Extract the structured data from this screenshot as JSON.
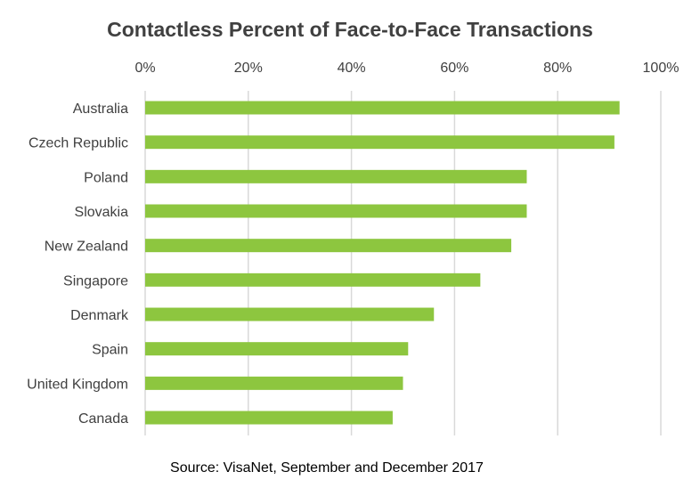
{
  "chart_data": {
    "type": "bar",
    "orientation": "horizontal",
    "title": "Contactless Percent of Face-to-Face Transactions",
    "source": "Source: VisaNet, September and December 2017",
    "categories": [
      "Australia",
      "Czech Republic",
      "Poland",
      "Slovakia",
      "New Zealand",
      "Singapore",
      "Denmark",
      "Spain",
      "United Kingdom",
      "Canada"
    ],
    "values": [
      92,
      91,
      74,
      74,
      71,
      65,
      56,
      51,
      50,
      48
    ],
    "xlim": [
      0,
      100
    ],
    "xticks": [
      0,
      20,
      40,
      60,
      80,
      100
    ],
    "xtick_labels": [
      "0%",
      "20%",
      "40%",
      "60%",
      "80%",
      "100%"
    ],
    "axis_position": "top",
    "grid": true,
    "bar_color": "#8dc63f",
    "grid_color": "#d9d9d9"
  }
}
